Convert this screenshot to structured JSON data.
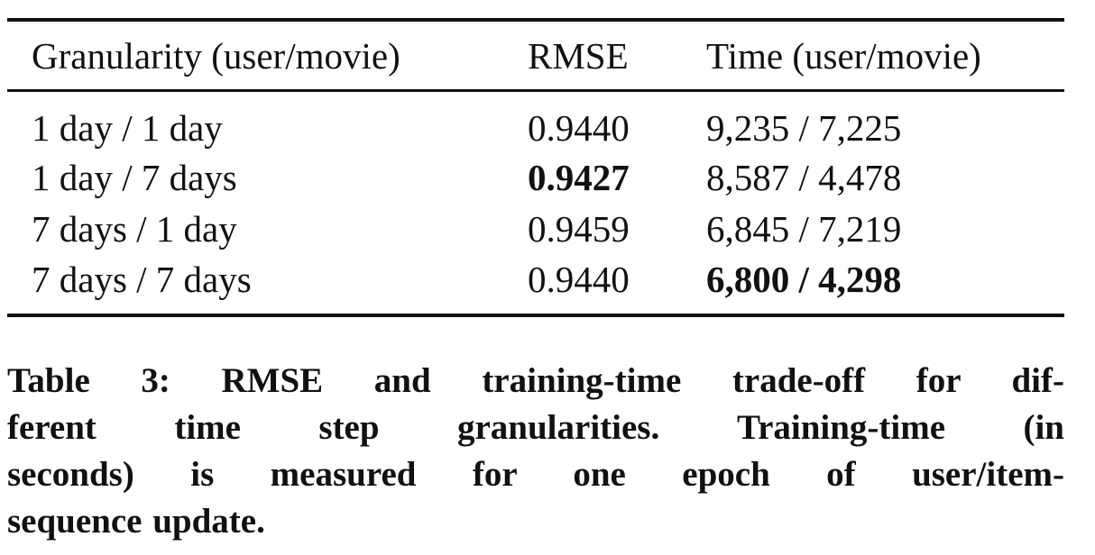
{
  "table": {
    "header": [
      "Granularity (user/movie)",
      "RMSE",
      "Time (user/movie)"
    ],
    "rows": [
      [
        "1 day / 1 day",
        "0.9440",
        "9,235 / 7,225"
      ],
      [
        "1 day / 7 days",
        "0.9427",
        "8,587 / 4,478"
      ],
      [
        "7 days / 1 day",
        "0.9459",
        "6,845 / 7,219"
      ],
      [
        "7 days / 7 days",
        "0.9440",
        "6,800 / 4,298"
      ]
    ],
    "bold": [
      [
        1,
        1
      ],
      [
        3,
        2
      ]
    ]
  },
  "caption": {
    "lines": [
      "Table 3: RMSE and training-time trade-off for dif-",
      "ferent time step granularities. Training-time (in",
      "seconds) is measured for one epoch of user/item-",
      "sequence update."
    ]
  }
}
